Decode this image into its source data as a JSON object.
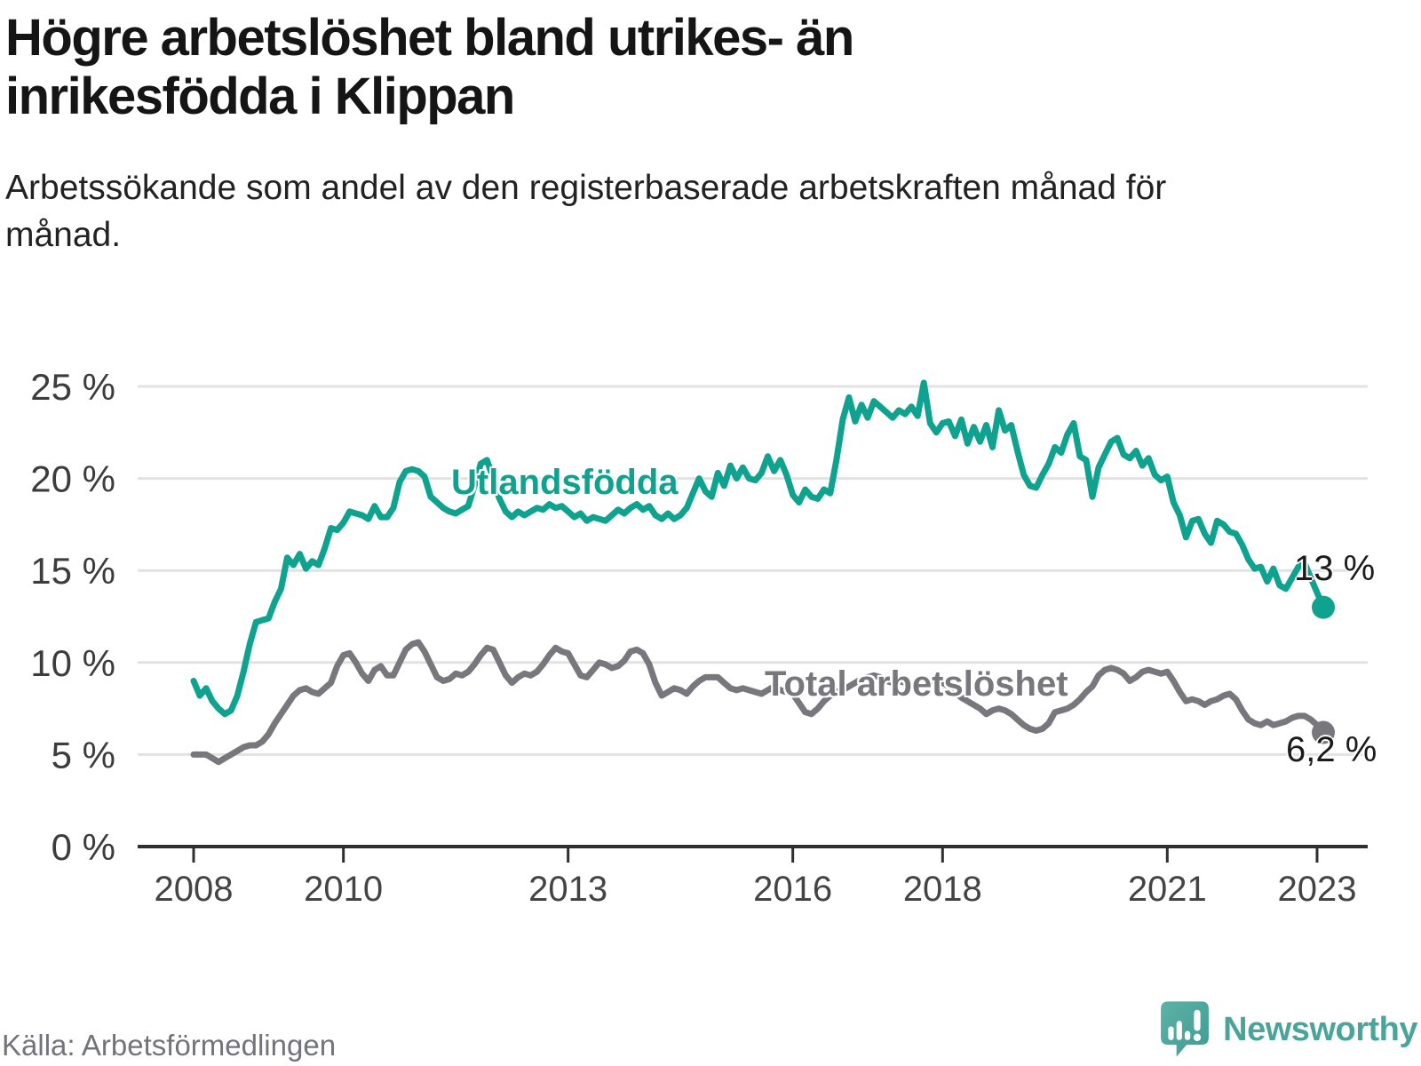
{
  "header": {
    "title": "Högre arbetslöshet bland utrikes- än inrikesfödda i Klippan",
    "subtitle": "Arbetssökande som andel av den registerbaserade arbetskraften månad för månad."
  },
  "chart_data": {
    "type": "line",
    "unit": "%",
    "start_year": 2008,
    "frequency": "monthly",
    "ylim": [
      0,
      26
    ],
    "grid": "horizontal",
    "yticks": [
      {
        "v": 0,
        "label": "0 %"
      },
      {
        "v": 5,
        "label": "5 %"
      },
      {
        "v": 10,
        "label": "10 %"
      },
      {
        "v": 15,
        "label": "15 %"
      },
      {
        "v": 20,
        "label": "20 %"
      },
      {
        "v": 25,
        "label": "25 %"
      }
    ],
    "xticks": [
      {
        "year": 2008,
        "label": "2008"
      },
      {
        "year": 2010,
        "label": "2010"
      },
      {
        "year": 2013,
        "label": "2013"
      },
      {
        "year": 2016,
        "label": "2016"
      },
      {
        "year": 2018,
        "label": "2018"
      },
      {
        "year": 2021,
        "label": "2021"
      },
      {
        "year": 2023,
        "label": "2023"
      }
    ],
    "series": [
      {
        "name": "Utlandsfödda",
        "color": "#0ea28f",
        "end_label": "13 %",
        "last_value": 13.0,
        "values": [
          9.0,
          8.2,
          8.6,
          7.9,
          7.5,
          7.2,
          7.4,
          8.2,
          9.5,
          11.0,
          12.2,
          12.3,
          12.4,
          13.3,
          14.0,
          15.7,
          15.3,
          15.9,
          15.1,
          15.5,
          15.3,
          16.2,
          17.3,
          17.2,
          17.6,
          18.2,
          18.1,
          18.0,
          17.8,
          18.5,
          17.9,
          17.9,
          18.4,
          19.8,
          20.4,
          20.5,
          20.4,
          20.1,
          19.0,
          18.7,
          18.4,
          18.2,
          18.1,
          18.3,
          18.5,
          19.6,
          20.8,
          21.0,
          20.0,
          18.9,
          18.2,
          17.9,
          18.2,
          18.0,
          18.2,
          18.4,
          18.3,
          18.6,
          18.4,
          18.5,
          18.2,
          17.9,
          18.1,
          17.7,
          17.9,
          17.8,
          17.7,
          18.0,
          18.3,
          18.1,
          18.4,
          18.6,
          18.3,
          18.5,
          18.0,
          17.8,
          18.1,
          17.8,
          18.0,
          18.4,
          19.2,
          20.0,
          19.3,
          19.0,
          20.3,
          19.6,
          20.7,
          20.0,
          20.6,
          20.0,
          19.9,
          20.3,
          21.2,
          20.4,
          21.0,
          20.2,
          19.1,
          18.7,
          19.4,
          19.0,
          18.9,
          19.4,
          19.2,
          21.0,
          23.2,
          24.4,
          23.1,
          24.0,
          23.3,
          24.2,
          23.9,
          23.6,
          23.3,
          23.7,
          23.5,
          23.9,
          23.4,
          25.2,
          23.0,
          22.5,
          23.0,
          23.1,
          22.3,
          23.2,
          21.9,
          22.8,
          22.0,
          22.9,
          21.7,
          23.7,
          22.6,
          22.9,
          21.5,
          20.2,
          19.6,
          19.5,
          20.2,
          20.8,
          21.7,
          21.4,
          22.4,
          23.0,
          21.2,
          21.0,
          19.0,
          20.6,
          21.3,
          22.0,
          22.2,
          21.3,
          21.1,
          21.5,
          20.7,
          21.1,
          20.2,
          19.9,
          20.1,
          18.7,
          18.0,
          16.8,
          17.7,
          17.8,
          17.0,
          16.5,
          17.7,
          17.5,
          17.1,
          17.0,
          16.4,
          15.6,
          15.1,
          15.2,
          14.4,
          15.1,
          14.2,
          14.0,
          14.6,
          15.2,
          15.4,
          14.6,
          13.8,
          13.0
        ]
      },
      {
        "name": "Total arbetslöshet",
        "color": "#77777d",
        "end_label": "6,2 %",
        "last_value": 6.2,
        "values": [
          5.0,
          5.0,
          5.0,
          4.8,
          4.6,
          4.8,
          5.0,
          5.2,
          5.4,
          5.5,
          5.5,
          5.7,
          6.1,
          6.7,
          7.2,
          7.7,
          8.2,
          8.5,
          8.6,
          8.4,
          8.3,
          8.6,
          8.9,
          9.8,
          10.4,
          10.5,
          10.0,
          9.4,
          9.0,
          9.6,
          9.8,
          9.3,
          9.3,
          10.0,
          10.7,
          11.0,
          11.1,
          10.6,
          9.9,
          9.2,
          9.0,
          9.1,
          9.4,
          9.3,
          9.5,
          9.9,
          10.4,
          10.8,
          10.7,
          10.0,
          9.3,
          8.9,
          9.2,
          9.4,
          9.3,
          9.5,
          9.9,
          10.4,
          10.8,
          10.6,
          10.5,
          9.9,
          9.3,
          9.2,
          9.6,
          10.0,
          9.9,
          9.7,
          9.8,
          10.1,
          10.6,
          10.7,
          10.5,
          9.9,
          8.9,
          8.2,
          8.4,
          8.6,
          8.5,
          8.3,
          8.7,
          9.0,
          9.2,
          9.2,
          9.2,
          8.9,
          8.6,
          8.5,
          8.6,
          8.5,
          8.4,
          8.3,
          8.5,
          8.7,
          8.5,
          8.4,
          8.3,
          7.8,
          7.3,
          7.2,
          7.5,
          7.9,
          8.2,
          8.4,
          8.5,
          8.7,
          8.9,
          9.1,
          9.2,
          9.3,
          9.2,
          9.0,
          8.9,
          9.0,
          8.9,
          8.8,
          8.7,
          8.8,
          8.9,
          9.0,
          8.9,
          8.7,
          8.4,
          8.1,
          7.9,
          7.7,
          7.5,
          7.2,
          7.4,
          7.5,
          7.4,
          7.2,
          6.9,
          6.6,
          6.4,
          6.3,
          6.4,
          6.7,
          7.3,
          7.4,
          7.5,
          7.7,
          8.0,
          8.4,
          8.7,
          9.3,
          9.6,
          9.7,
          9.6,
          9.4,
          9.0,
          9.2,
          9.5,
          9.6,
          9.5,
          9.4,
          9.5,
          9.0,
          8.4,
          7.9,
          8.0,
          7.9,
          7.7,
          7.9,
          8.0,
          8.2,
          8.3,
          8.0,
          7.4,
          6.9,
          6.7,
          6.6,
          6.8,
          6.6,
          6.7,
          6.8,
          7.0,
          7.1,
          7.1,
          6.9,
          6.6,
          6.2
        ]
      }
    ]
  },
  "footer": {
    "source": "Källa: Arbetsförmedlingen",
    "brand": "Newsworthy"
  },
  "colors": {
    "accent_teal": "#0ea28f",
    "neutral_gray": "#77777d",
    "gridline": "#e2e2e2",
    "axis": "#2f2f2f",
    "logo_teal": "#4aa49a"
  }
}
